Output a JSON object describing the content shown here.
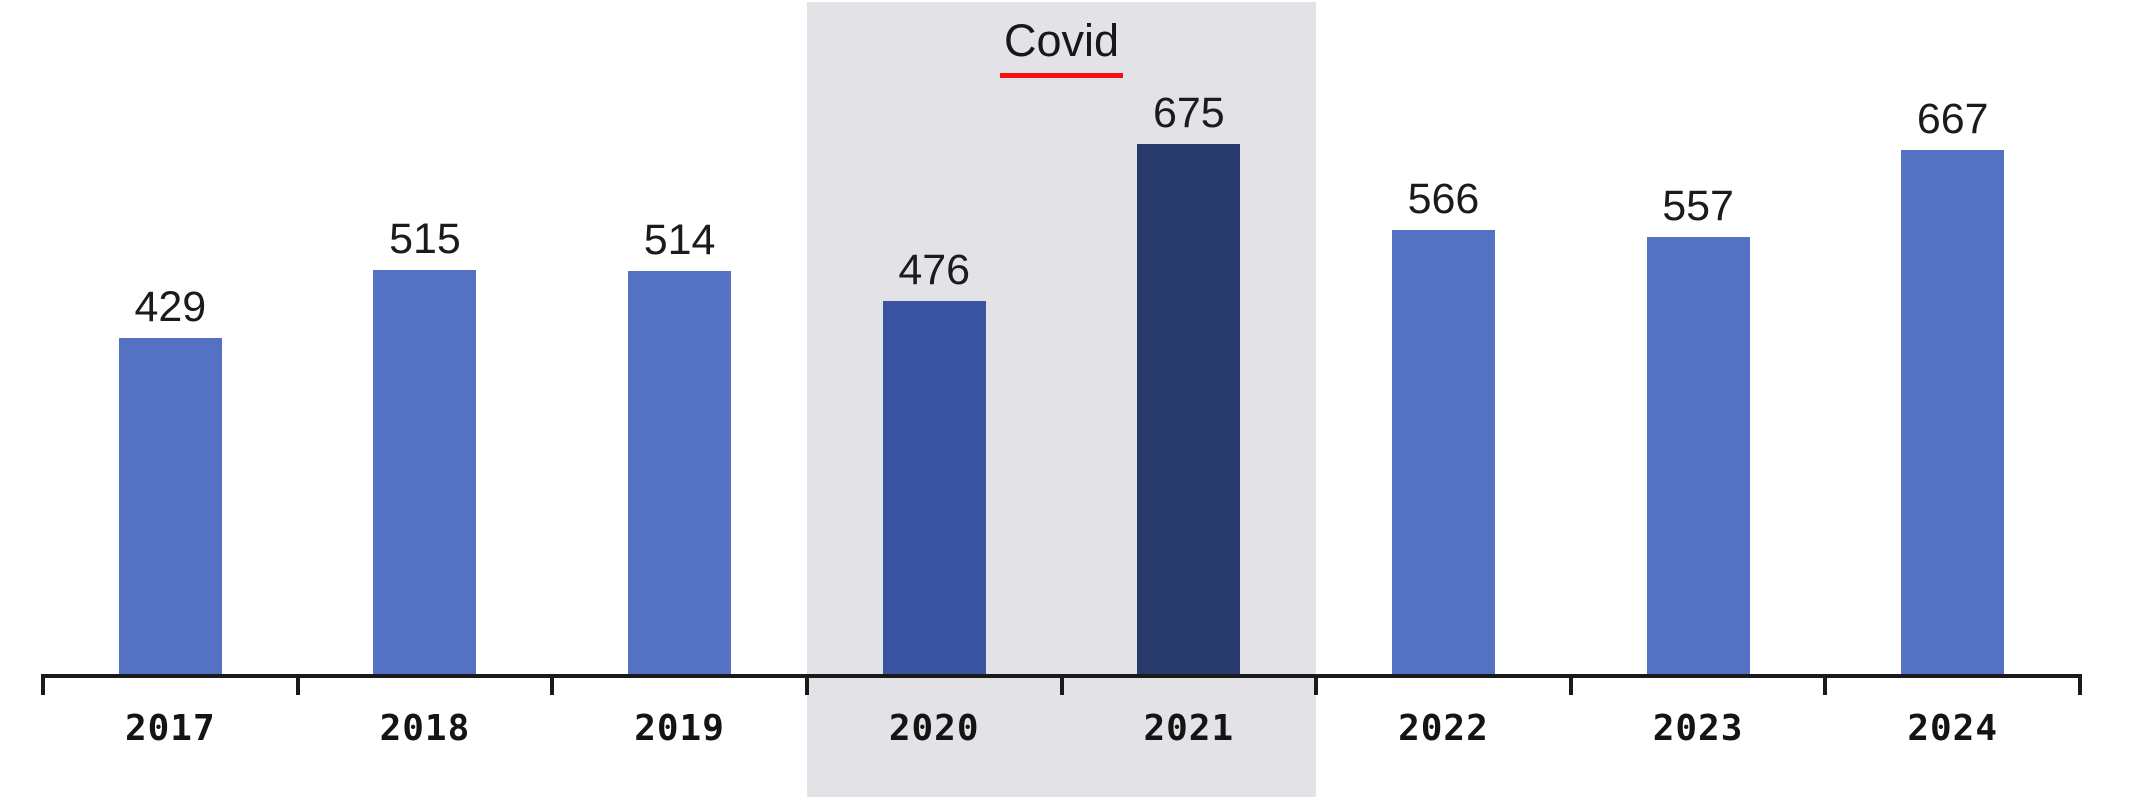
{
  "chart_data": {
    "type": "bar",
    "title": "",
    "xlabel": "",
    "ylabel": "",
    "categories": [
      "2017",
      "2018",
      "2019",
      "2020",
      "2021",
      "2022",
      "2023",
      "2024"
    ],
    "values": [
      429,
      515,
      514,
      476,
      675,
      566,
      557,
      667
    ],
    "ylim": [
      0,
      858
    ],
    "grid": false,
    "legend": "none",
    "value_labels_shown": true,
    "annotation": {
      "label": "Covid",
      "underline_color": "#f80f0f",
      "band_categories": [
        "2020",
        "2021"
      ],
      "band_color": "#e3e2e7"
    },
    "colors": {
      "bar_default": "#5571c4",
      "bar_2020": "#3a54a1",
      "bar_2021": "#273a6b",
      "axis": "#1a1a1a",
      "label_text": "#1b1b1e"
    }
  }
}
